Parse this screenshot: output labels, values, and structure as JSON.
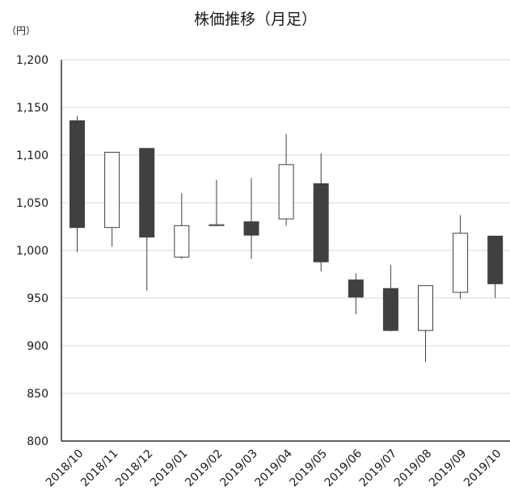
{
  "chart_data": {
    "type": "candlestick",
    "title": "株価推移（月足）",
    "unit_label": "（円）",
    "ylim": [
      800,
      1200
    ],
    "yticks": [
      "800",
      "850",
      "900",
      "950",
      "1,000",
      "1,050",
      "1,100",
      "1,150",
      "1,200"
    ],
    "ytick_values": [
      800,
      850,
      900,
      950,
      1000,
      1050,
      1100,
      1150,
      1200
    ],
    "grid": true,
    "categories": [
      "2018/10",
      "2018/11",
      "2018/12",
      "2019/01",
      "2019/02",
      "2019/03",
      "2019/04",
      "2019/05",
      "2019/06",
      "2019/07",
      "2019/08",
      "2019/09",
      "2019/10"
    ],
    "ohlc": [
      {
        "open": 1136,
        "high": 1141,
        "low": 998,
        "close": 1024
      },
      {
        "open": 1024,
        "high": 1103,
        "low": 1004,
        "close": 1103
      },
      {
        "open": 1107,
        "high": 1107,
        "low": 958,
        "close": 1014
      },
      {
        "open": 993,
        "high": 1060,
        "low": 991,
        "close": 1026
      },
      {
        "open": 1026,
        "high": 1074,
        "low": 1026,
        "close": 1027
      },
      {
        "open": 1030,
        "high": 1076,
        "low": 991,
        "close": 1016
      },
      {
        "open": 1033,
        "high": 1122,
        "low": 1026,
        "close": 1090
      },
      {
        "open": 1070,
        "high": 1102,
        "low": 978,
        "close": 988
      },
      {
        "open": 969,
        "high": 976,
        "low": 933,
        "close": 951
      },
      {
        "open": 960,
        "high": 985,
        "low": 915,
        "close": 916
      },
      {
        "open": 916,
        "high": 963,
        "low": 883,
        "close": 963
      },
      {
        "open": 956,
        "high": 1037,
        "low": 949,
        "close": 1018
      },
      {
        "open": 1015,
        "high": 1015,
        "low": 950,
        "close": 965
      }
    ],
    "colors": {
      "up_fill": "#ffffff",
      "down_fill": "#404040",
      "stroke": "#404040",
      "grid": "#d9d9d9",
      "axis": "#000000"
    }
  }
}
